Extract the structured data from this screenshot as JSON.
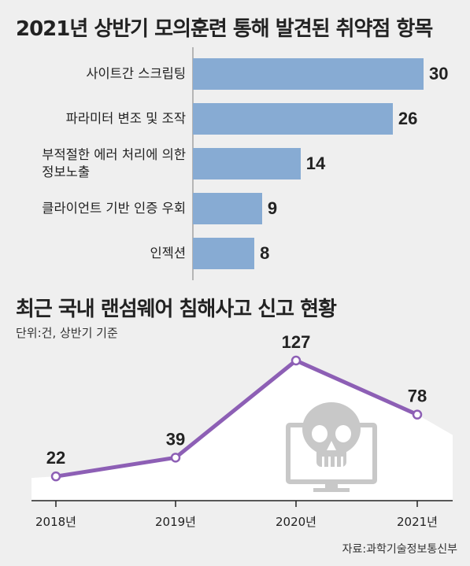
{
  "chart_data": [
    {
      "type": "bar",
      "orientation": "horizontal",
      "title": "2021년 상반기 모의훈련 통해 발견된 취약점 항목",
      "categories": [
        "사이트간 스크립팅",
        "파라미터 변조 및 조작",
        "부적절한 에러 처리에 의한 정보노출",
        "클라이언트 기반 인증 우회",
        "인젝션"
      ],
      "category_lines": [
        [
          "사이트간 스크립팅"
        ],
        [
          "파라미터 변조 및 조작"
        ],
        [
          "부적절한 에러 처리에 의한",
          "정보노출"
        ],
        [
          "클라이언트 기반 인증 우회"
        ],
        [
          "인젝션"
        ]
      ],
      "values": [
        30,
        26,
        14,
        9,
        8
      ],
      "value_labels": [
        "30",
        "26",
        "14",
        "9",
        "8"
      ],
      "xlim": [
        0,
        30
      ],
      "bar_color": "#87abd3"
    },
    {
      "type": "line",
      "title": "최근 국내 랜섬웨어 침해사고 신고 현황",
      "subtitle": "단위:건, 상반기 기준",
      "categories": [
        "2018년",
        "2019년",
        "2020년",
        "2021년"
      ],
      "values": [
        22,
        39,
        127,
        78
      ],
      "value_labels": [
        "22",
        "39",
        "127",
        "78"
      ],
      "ylim": [
        0,
        140
      ],
      "line_color": "#8d5fb5",
      "area_color": "#ffffff",
      "icon": "skull-monitor-icon"
    }
  ],
  "source": "자료:과학기술정보통신부"
}
